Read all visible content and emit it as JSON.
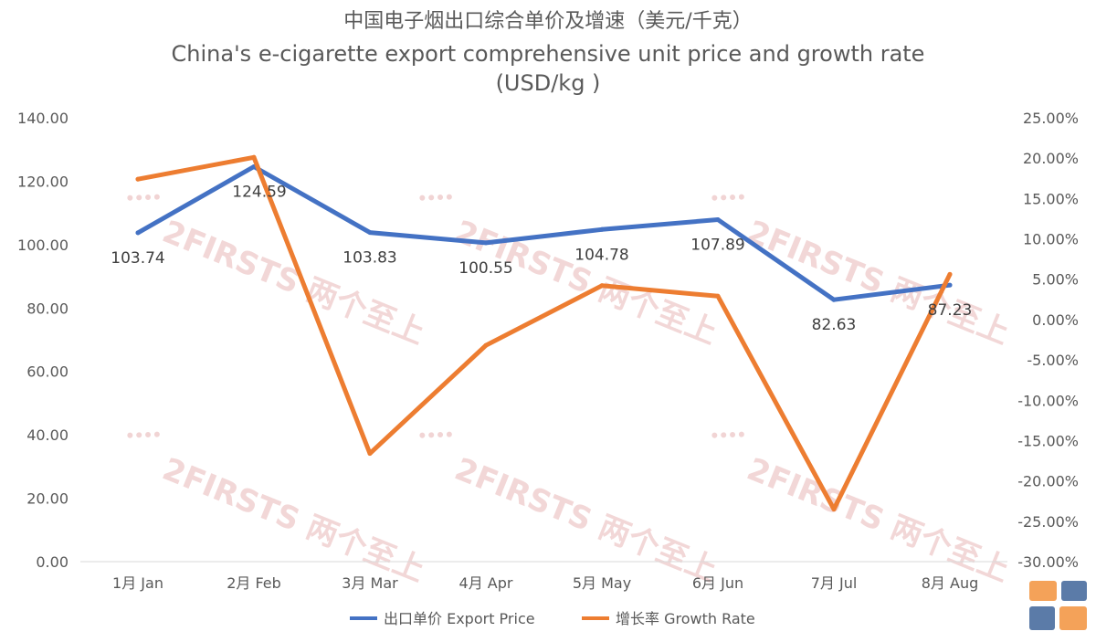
{
  "chart_data": {
    "type": "line",
    "title_cn": "中国电子烟出口综合单价及增速（美元/千克）",
    "title_en_line1": "China's e-cigarette export comprehensive unit price and growth rate",
    "title_en_line2": "(USD/kg )",
    "categories": [
      "1月 Jan",
      "2月 Feb",
      "3月 Mar",
      "4月 Apr",
      "5月 May",
      "6月 Jun",
      "7月 Jul",
      "8月 Aug"
    ],
    "left_axis": {
      "ylim": [
        0,
        140
      ],
      "ticks": [
        "0.00",
        "20.00",
        "40.00",
        "60.00",
        "80.00",
        "100.00",
        "120.00",
        "140.00"
      ]
    },
    "right_axis": {
      "ylim": [
        -30,
        25
      ],
      "ticks": [
        "-30.00%",
        "-25.00%",
        "-20.00%",
        "-15.00%",
        "-10.00%",
        "-5.00%",
        "0.00%",
        "5.00%",
        "10.00%",
        "15.00%",
        "20.00%",
        "25.00%"
      ]
    },
    "series": [
      {
        "name": "出口单价 Export Price",
        "axis": "left",
        "color": "#4472C4",
        "values": [
          103.74,
          124.59,
          103.83,
          100.55,
          104.78,
          107.89,
          82.63,
          87.23
        ],
        "labels": [
          "103.74",
          "124.59",
          "103.83",
          "100.55",
          "104.78",
          "107.89",
          "82.63",
          "87.23"
        ]
      },
      {
        "name": "增长率 Growth Rate",
        "axis": "right",
        "color": "#ED7D31",
        "values": [
          17.4,
          20.1,
          -16.6,
          -3.2,
          4.2,
          2.9,
          -23.5,
          5.6
        ]
      }
    ],
    "grid": false,
    "legend": "bottom"
  },
  "watermark": {
    "text": "2FIRSTS 两个至上"
  },
  "logo": {
    "colors": [
      "#F4A259",
      "#5B7BA8"
    ]
  }
}
